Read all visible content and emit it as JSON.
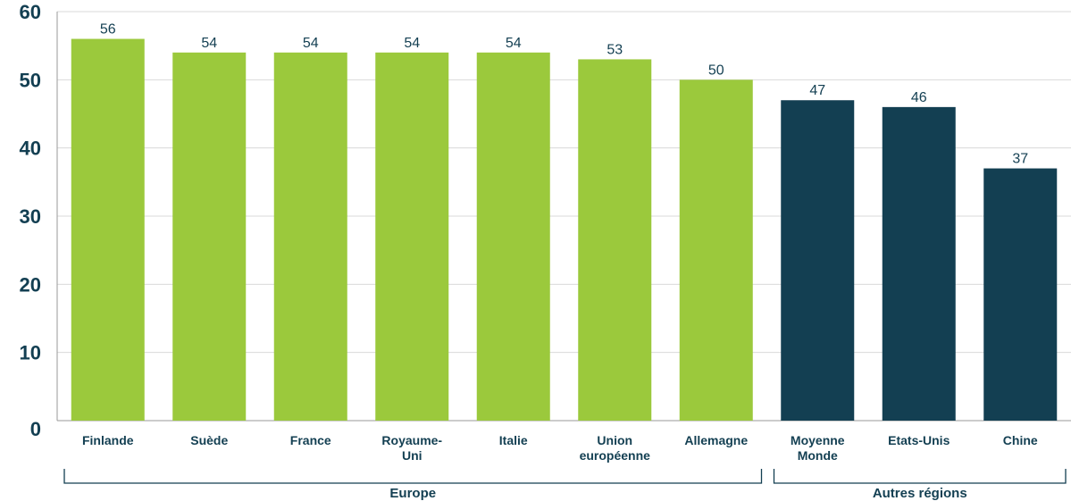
{
  "chart_data": {
    "type": "bar",
    "title": "",
    "xlabel": "",
    "ylabel": "",
    "ylim": [
      0,
      60
    ],
    "yticks": [
      0,
      10,
      20,
      30,
      40,
      50,
      60
    ],
    "grid": true,
    "categories": [
      "Finlande",
      "Suède",
      "France",
      "Royaume-Uni",
      "Italie",
      "Union européenne",
      "Allemagne",
      "Moyenne Monde",
      "Etats-Unis",
      "Chine"
    ],
    "category_lines": [
      [
        "Finlande"
      ],
      [
        "Suède"
      ],
      [
        "France"
      ],
      [
        "Royaume-",
        "Uni"
      ],
      [
        "Italie"
      ],
      [
        "Union",
        "européenne"
      ],
      [
        "Allemagne"
      ],
      [
        "Moyenne",
        "Monde"
      ],
      [
        "Etats-Unis"
      ],
      [
        "Chine"
      ]
    ],
    "values": [
      56,
      54,
      54,
      54,
      54,
      53,
      50,
      47,
      46,
      37
    ],
    "groups": [
      {
        "label": "Europe",
        "start": 0,
        "end": 6,
        "color": "#9bc93c"
      },
      {
        "label": "Autres régions",
        "start": 7,
        "end": 9,
        "color": "#133f52"
      }
    ]
  }
}
